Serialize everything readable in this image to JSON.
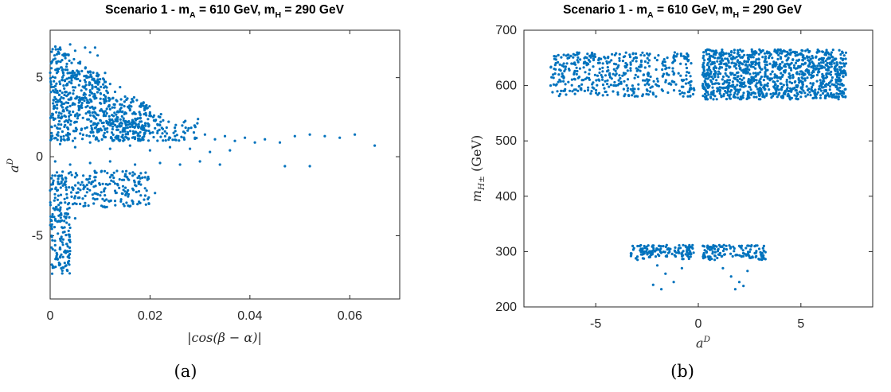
{
  "chart_data": [
    {
      "type": "scatter",
      "panel": "(a)",
      "title": "Scenario 1 - m",
      "title_sub_a": "A",
      "title_mid": " = 610 GeV, m",
      "title_sub_h": "H",
      "title_end": " = 290 GeV",
      "xlabel": "|cos(β − α)|",
      "ylabel_base": "a",
      "ylabel_sup": "D",
      "xlim": [
        0,
        0.07
      ],
      "ylim": [
        -9,
        8
      ],
      "xticks": [
        0,
        0.02,
        0.04,
        0.06
      ],
      "xtick_labels": [
        "0",
        "0.02",
        "0.04",
        "0.06"
      ],
      "yticks": [
        -5,
        0,
        5
      ],
      "ytick_labels": [
        "-5",
        "0",
        "5"
      ],
      "color": "#0072BD",
      "points": [
        [
          0.0005,
          6.8
        ],
        [
          0.001,
          6.2
        ],
        [
          0.0015,
          5.5
        ],
        [
          0.002,
          6.9
        ],
        [
          0.003,
          6.5
        ],
        [
          0.004,
          7.1
        ],
        [
          0.005,
          6.7
        ],
        [
          0.006,
          6.0
        ],
        [
          0.007,
          6.9
        ],
        [
          0.008,
          6.6
        ],
        [
          0.009,
          6.9
        ],
        [
          0.0095,
          6.4
        ],
        [
          0.001,
          5.0
        ],
        [
          0.002,
          4.6
        ],
        [
          0.003,
          4.1
        ],
        [
          0.004,
          5.3
        ],
        [
          0.006,
          4.8
        ],
        [
          0.008,
          4.2
        ],
        [
          0.01,
          4.9
        ],
        [
          0.011,
          5.3
        ],
        [
          0.012,
          4.6
        ],
        [
          0.013,
          4.1
        ],
        [
          0.014,
          4.4
        ],
        [
          0.015,
          3.8
        ],
        [
          0.002,
          3.5
        ],
        [
          0.004,
          3.2
        ],
        [
          0.006,
          3.6
        ],
        [
          0.008,
          3.1
        ],
        [
          0.01,
          3.4
        ],
        [
          0.012,
          3.0
        ],
        [
          0.014,
          3.3
        ],
        [
          0.016,
          3.0
        ],
        [
          0.018,
          2.7
        ],
        [
          0.02,
          2.8
        ],
        [
          0.022,
          2.5
        ],
        [
          0.001,
          2.4
        ],
        [
          0.003,
          2.0
        ],
        [
          0.005,
          2.2
        ],
        [
          0.007,
          1.8
        ],
        [
          0.009,
          2.1
        ],
        [
          0.011,
          1.7
        ],
        [
          0.013,
          2.0
        ],
        [
          0.015,
          1.6
        ],
        [
          0.017,
          1.9
        ],
        [
          0.019,
          1.5
        ],
        [
          0.021,
          1.8
        ],
        [
          0.023,
          1.6
        ],
        [
          0.025,
          1.3
        ],
        [
          0.027,
          1.5
        ],
        [
          0.029,
          1.2
        ],
        [
          0.031,
          1.4
        ],
        [
          0.033,
          1.1
        ],
        [
          0.035,
          1.3
        ],
        [
          0.037,
          1.0
        ],
        [
          0.039,
          1.2
        ],
        [
          0.041,
          0.9
        ],
        [
          0.043,
          1.1
        ],
        [
          0.046,
          0.9
        ],
        [
          0.049,
          1.3
        ],
        [
          0.052,
          1.4
        ],
        [
          0.055,
          1.3
        ],
        [
          0.058,
          1.2
        ],
        [
          0.061,
          1.4
        ],
        [
          0.065,
          0.7
        ],
        [
          0.002,
          0.8
        ],
        [
          0.005,
          0.6
        ],
        [
          0.008,
          0.9
        ],
        [
          0.012,
          0.5
        ],
        [
          0.016,
          0.7
        ],
        [
          0.02,
          0.4
        ],
        [
          0.024,
          0.6
        ],
        [
          0.028,
          0.5
        ],
        [
          0.032,
          0.3
        ],
        [
          0.036,
          0.4
        ],
        [
          0.001,
          -0.3
        ],
        [
          0.004,
          -0.5
        ],
        [
          0.008,
          -0.4
        ],
        [
          0.012,
          -0.3
        ],
        [
          0.017,
          -0.5
        ],
        [
          0.022,
          -0.4
        ],
        [
          0.026,
          -0.5
        ],
        [
          0.03,
          -0.3
        ],
        [
          0.034,
          -0.5
        ],
        [
          0.047,
          -0.6
        ],
        [
          0.052,
          -0.6
        ],
        [
          0.001,
          -1.2
        ],
        [
          0.003,
          -1.6
        ],
        [
          0.005,
          -1.3
        ],
        [
          0.007,
          -1.9
        ],
        [
          0.009,
          -1.5
        ],
        [
          0.011,
          -2.0
        ],
        [
          0.013,
          -1.7
        ],
        [
          0.015,
          -2.2
        ],
        [
          0.017,
          -1.8
        ],
        [
          0.019,
          -2.0
        ],
        [
          0.021,
          -2.3
        ],
        [
          0.001,
          -2.6
        ],
        [
          0.003,
          -2.9
        ],
        [
          0.005,
          -2.5
        ],
        [
          0.007,
          -3.1
        ],
        [
          0.009,
          -2.7
        ],
        [
          0.011,
          -3.2
        ],
        [
          0.013,
          -2.8
        ],
        [
          0.0005,
          -3.8
        ],
        [
          0.002,
          -4.1
        ],
        [
          0.003,
          -3.6
        ],
        [
          0.004,
          -4.5
        ],
        [
          0.005,
          -3.9
        ],
        [
          0.0003,
          -5.0
        ],
        [
          0.001,
          -5.6
        ],
        [
          0.002,
          -5.2
        ],
        [
          0.003,
          -6.0
        ],
        [
          0.0015,
          -6.5
        ],
        [
          0.0008,
          -7.0
        ],
        [
          0.0004,
          -7.4
        ],
        [
          0.002,
          -6.8
        ],
        [
          0.004,
          -5.4
        ]
      ],
      "density_regions": [
        {
          "xmin": 0,
          "xmax": 0.012,
          "ymin": 3.6,
          "ymax": 7.2,
          "n": 360
        },
        {
          "xmin": 0,
          "xmax": 0.02,
          "ymin": 1.0,
          "ymax": 3.8,
          "n": 420
        },
        {
          "xmin": 0.012,
          "xmax": 0.03,
          "ymin": 1.0,
          "ymax": 2.8,
          "n": 140
        },
        {
          "xmin": 0,
          "xmax": 0.02,
          "ymin": -3.2,
          "ymax": -0.9,
          "n": 230
        },
        {
          "xmin": 0,
          "xmax": 0.004,
          "ymin": -7.4,
          "ymax": -3.2,
          "n": 120
        }
      ]
    },
    {
      "type": "scatter",
      "panel": "(b)",
      "title": "Scenario 1 - m",
      "title_sub_a": "A",
      "title_mid": " = 610 GeV, m",
      "title_sub_h": "H",
      "title_end": " = 290 GeV",
      "xlabel_base": "a",
      "xlabel_sup": "D",
      "ylabel": "m",
      "ylabel_sub": "H±",
      "ylabel_unit": " (GeV)",
      "xlim": [
        -8.5,
        8.5
      ],
      "ylim": [
        200,
        700
      ],
      "xticks": [
        -5,
        0,
        5
      ],
      "xtick_labels": [
        "-5",
        "0",
        "5"
      ],
      "yticks": [
        200,
        300,
        400,
        500,
        600,
        700
      ],
      "ytick_labels": [
        "200",
        "300",
        "400",
        "500",
        "600",
        "700"
      ],
      "color": "#0072BD",
      "points": [
        [
          -7.2,
          600
        ],
        [
          -6.8,
          620
        ],
        [
          -6.4,
          640
        ],
        [
          -6.0,
          655
        ],
        [
          -5.6,
          610
        ],
        [
          -5.2,
          590
        ],
        [
          -4.8,
          630
        ],
        [
          -4.4,
          650
        ],
        [
          -4.0,
          600
        ],
        [
          -3.6,
          620
        ],
        [
          -3.2,
          645
        ],
        [
          -2.8,
          655
        ],
        [
          -2.4,
          610
        ],
        [
          -2.0,
          600
        ],
        [
          -1.6,
          630
        ],
        [
          -1.2,
          650
        ],
        [
          -0.8,
          610
        ],
        [
          -0.4,
          595
        ],
        [
          0.4,
          600
        ],
        [
          0.8,
          650
        ],
        [
          1.2,
          660
        ],
        [
          1.6,
          620
        ],
        [
          2.0,
          640
        ],
        [
          2.4,
          655
        ],
        [
          2.8,
          600
        ],
        [
          3.2,
          610
        ],
        [
          3.6,
          650
        ],
        [
          4.0,
          630
        ],
        [
          4.4,
          590
        ],
        [
          4.8,
          660
        ],
        [
          5.2,
          620
        ],
        [
          5.6,
          640
        ],
        [
          6.0,
          600
        ],
        [
          6.4,
          650
        ],
        [
          6.8,
          620
        ],
        [
          7.2,
          640
        ],
        [
          -3.2,
          310
        ],
        [
          -2.8,
          305
        ],
        [
          -2.4,
          290
        ],
        [
          -2.0,
          275
        ],
        [
          -1.6,
          260
        ],
        [
          -1.2,
          245
        ],
        [
          -0.8,
          270
        ],
        [
          -0.4,
          300
        ],
        [
          -2.2,
          240
        ],
        [
          -1.8,
          232
        ],
        [
          0.4,
          300
        ],
        [
          0.8,
          285
        ],
        [
          1.2,
          270
        ],
        [
          1.6,
          255
        ],
        [
          2.0,
          245
        ],
        [
          2.4,
          265
        ],
        [
          2.8,
          290
        ],
        [
          3.2,
          310
        ],
        [
          1.8,
          232
        ],
        [
          2.2,
          238
        ]
      ],
      "density_regions": [
        {
          "xmin": -7.2,
          "xmax": -0.2,
          "ymin": 580,
          "ymax": 660,
          "n": 420
        },
        {
          "xmin": 0.2,
          "xmax": 7.2,
          "ymin": 575,
          "ymax": 665,
          "n": 1100
        },
        {
          "xmin": -3.3,
          "xmax": -0.2,
          "ymin": 285,
          "ymax": 312,
          "n": 140
        },
        {
          "xmin": 0.2,
          "xmax": 3.3,
          "ymin": 285,
          "ymax": 312,
          "n": 140
        }
      ]
    }
  ],
  "captions": [
    "(a)",
    "(b)"
  ]
}
